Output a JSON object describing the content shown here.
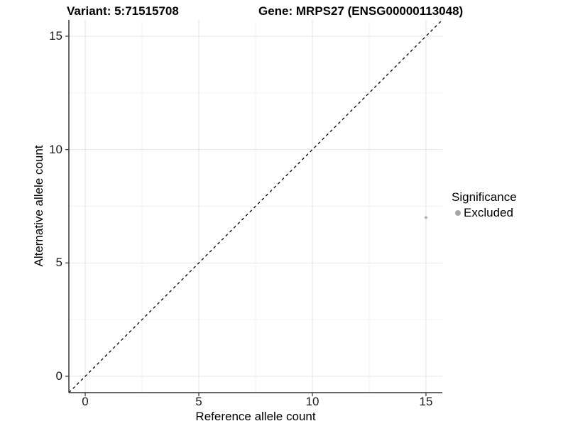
{
  "titles": {
    "variant": "Variant: 5:71515708",
    "gene": "Gene: MRPS27 (ENSG00000113048)"
  },
  "chart_data": {
    "type": "scatter",
    "title_left": "Variant: 5:71515708",
    "title_right": "Gene: MRPS27 (ENSG00000113048)",
    "xlabel": "Reference allele count",
    "ylabel": "Alternative allele count",
    "xlim": [
      -0.72,
      15.72
    ],
    "ylim": [
      -0.72,
      15.72
    ],
    "x_major_ticks": [
      0,
      5,
      10,
      15
    ],
    "y_major_ticks": [
      0,
      5,
      10,
      15
    ],
    "x_minor_ticks": [
      2.5,
      7.5,
      12.5
    ],
    "y_minor_ticks": [
      2.5,
      7.5,
      12.5
    ],
    "grid": "major and minor gridlines on white background",
    "series": [
      {
        "name": "Excluded",
        "color": "#b3b3b3",
        "point_radius": 2,
        "points": [
          {
            "x": 15,
            "y": 7
          }
        ]
      }
    ],
    "reference_line": {
      "equation": "y = x",
      "style": "dashed",
      "color": "#000000",
      "from": [
        -0.72,
        -0.72
      ],
      "to": [
        15.72,
        15.72
      ]
    },
    "legend": {
      "title": "Significance",
      "position": "right",
      "items": [
        {
          "label": "Excluded",
          "color": "#a6a6a6"
        }
      ]
    }
  },
  "style": {
    "axis_line_color": "#333333",
    "major_grid_color": "#e5e5e5",
    "minor_grid_color": "#f0f0f0",
    "tick_color": "#333333",
    "text_color": "#000000",
    "background": "#ffffff"
  }
}
